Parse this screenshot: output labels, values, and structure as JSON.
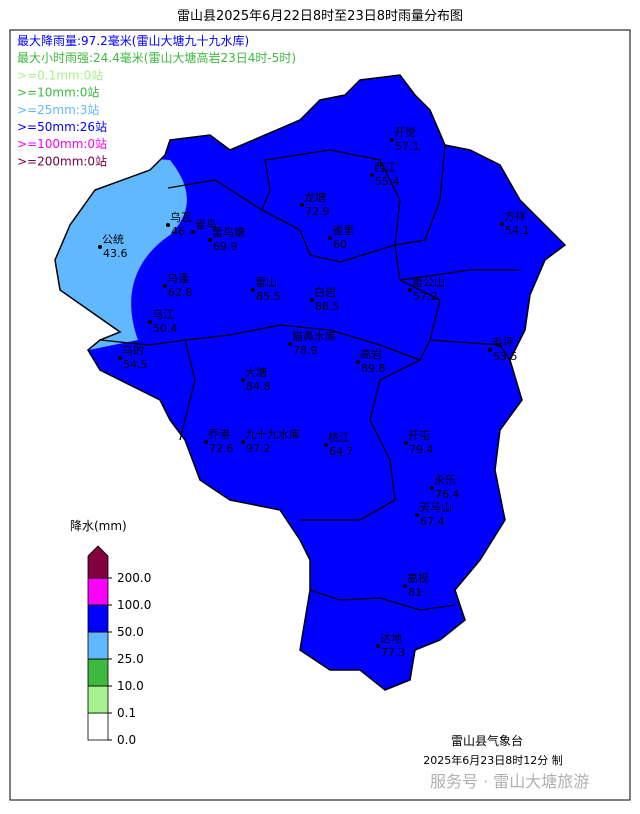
{
  "title": "雷山县2025年6月22日8时至23日8时雨量分布图",
  "summary": [
    {
      "text": "最大降雨量:97.2毫米(雷山大塘九十九水库)",
      "color": "#0000ff"
    },
    {
      "text": "最大小时雨强:24.4毫米(雷山大塘高岩23日4时-5时)",
      "color": "#3dba3d"
    },
    {
      "text": ">=0.1mm:0站",
      "color": "#a6f28f"
    },
    {
      "text": ">=10mm:0站",
      "color": "#3dba3d"
    },
    {
      "text": ">=25mm:3站",
      "color": "#61b8ff"
    },
    {
      "text": ">=50mm:26站",
      "color": "#0000ff"
    },
    {
      "text": ">=100mm:0站",
      "color": "#fa00fa"
    },
    {
      "text": ">=200mm:0站",
      "color": "#800040"
    }
  ],
  "stations": [
    {
      "name": "开觉",
      "value": "57.1"
    },
    {
      "name": "西江",
      "value": "55.4"
    },
    {
      "name": "龙塘",
      "value": "72.9"
    },
    {
      "name": "雀里",
      "value": "60"
    },
    {
      "name": "方祥",
      "value": "54.1"
    },
    {
      "name": "乌瓦",
      "value": "46"
    },
    {
      "name": "公统",
      "value": "43.6"
    },
    {
      "name": "雀鸟"
    },
    {
      "name": "雷鸟塘",
      "value": "69.9"
    },
    {
      "name": "乌逢",
      "value": "62.8"
    },
    {
      "name": "雷山",
      "value": "85.5"
    },
    {
      "name": "白岩",
      "value": "88.5"
    },
    {
      "name": "雷公山",
      "value": "57.2"
    },
    {
      "name": "乌江",
      "value": "50.4"
    },
    {
      "name": "乌的",
      "value": "54.5"
    },
    {
      "name": "猫鼻水库",
      "value": "78.9"
    },
    {
      "name": "高岩",
      "value": "89.8"
    },
    {
      "name": "毛坪",
      "value": "53.5"
    },
    {
      "name": "大塘",
      "value": "84.8"
    },
    {
      "name": "乔港",
      "value": "72.6"
    },
    {
      "name": "九十九水库",
      "value": "97.2"
    },
    {
      "name": "桃江",
      "value": "64.7"
    },
    {
      "name": "开屯",
      "value": "79.4"
    },
    {
      "name": "永乐",
      "value": "76.4"
    },
    {
      "name": "天马山",
      "value": "67.4"
    },
    {
      "name": "高枧",
      "value": "81"
    },
    {
      "name": "达地",
      "value": "77.3"
    }
  ],
  "colorbar": {
    "title": "降水(mm)",
    "labels": [
      "0.0",
      "0.1",
      "10.0",
      "25.0",
      "50.0",
      "100.0",
      "200.0"
    ],
    "colors": [
      "#ffffff",
      "#a6f28f",
      "#3dba3d",
      "#61b8ff",
      "#0000ff",
      "#fa00fa",
      "#800040"
    ]
  },
  "footer": {
    "org": "雷山县气象台",
    "time": "2025年6月23日8时12分    制"
  },
  "watermark": "服务号 · 雷山大塘旅游"
}
